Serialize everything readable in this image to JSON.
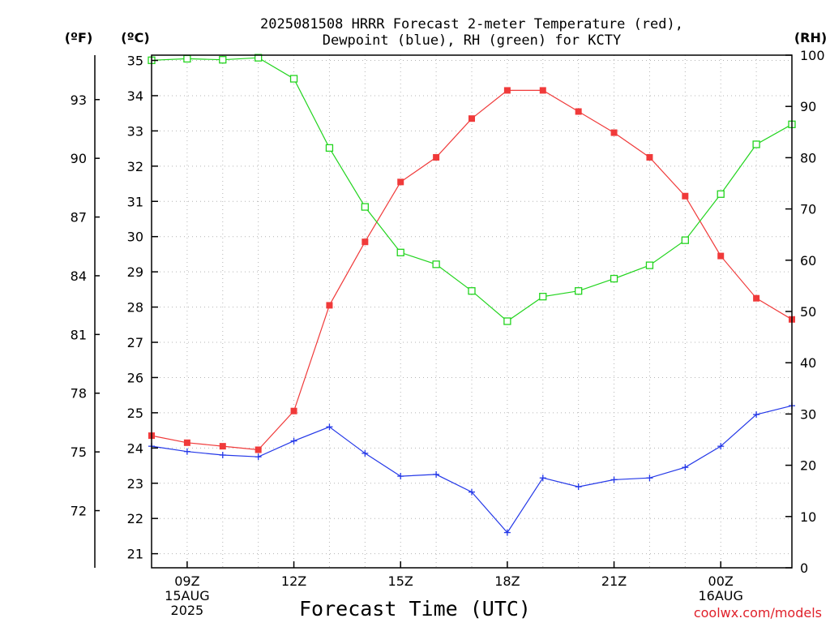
{
  "chart_data": {
    "type": "line",
    "title_lines": [
      "2025081508 HRRR Forecast 2-meter Temperature (red),",
      "Dewpoint (blue), RH (green) for KCTY"
    ],
    "xlabel": "Forecast Time (UTC)",
    "units": {
      "fahrenheit": "(ºF)",
      "celsius": "(ºC)",
      "rh": "(RH)"
    },
    "credit": "coolwx.com/models",
    "x_hours": [
      8,
      9,
      10,
      11,
      12,
      13,
      14,
      15,
      16,
      17,
      18,
      19,
      20,
      21,
      22,
      23,
      24,
      25,
      26
    ],
    "xlim": [
      8,
      26
    ],
    "x_ticks": [
      {
        "hour": 9,
        "lines": [
          "09Z",
          "15AUG",
          "2025"
        ]
      },
      {
        "hour": 12,
        "lines": [
          "12Z"
        ]
      },
      {
        "hour": 15,
        "lines": [
          "15Z"
        ]
      },
      {
        "hour": 18,
        "lines": [
          "18Z"
        ]
      },
      {
        "hour": 21,
        "lines": [
          "21Z"
        ]
      },
      {
        "hour": 24,
        "lines": [
          "00Z",
          "16AUG"
        ]
      }
    ],
    "celsius_axis": {
      "ylim": [
        20.6,
        35.15
      ],
      "ticks": [
        21,
        22,
        23,
        24,
        25,
        26,
        27,
        28,
        29,
        30,
        31,
        32,
        33,
        34,
        35
      ]
    },
    "fahrenheit_axis": {
      "ticks": [
        72,
        75,
        78,
        81,
        84,
        87,
        90,
        93
      ]
    },
    "rh_axis": {
      "ylim": [
        0,
        100
      ],
      "ticks": [
        0,
        10,
        20,
        30,
        40,
        50,
        60,
        70,
        80,
        90,
        100
      ]
    },
    "grid": true,
    "series": [
      {
        "name": "Temperature",
        "color": "#f03a3a",
        "marker": "filled-square",
        "axis": "celsius",
        "values": [
          24.35,
          24.15,
          24.05,
          23.95,
          25.05,
          28.05,
          29.85,
          31.55,
          32.25,
          33.35,
          34.15,
          34.15,
          33.55,
          32.95,
          32.25,
          31.15,
          29.45,
          28.25,
          27.65
        ]
      },
      {
        "name": "Dewpoint",
        "color": "#2438e8",
        "marker": "plus",
        "axis": "celsius",
        "values": [
          24.05,
          23.9,
          23.8,
          23.75,
          24.2,
          24.6,
          23.85,
          23.2,
          23.25,
          22.75,
          21.6,
          23.15,
          22.9,
          23.1,
          23.15,
          23.45,
          24.05,
          24.95,
          25.2
        ]
      },
      {
        "name": "RH",
        "color": "#22d41e",
        "marker": "open-square",
        "axis": "rh",
        "values": [
          99,
          99.3,
          99.1,
          99.5,
          95.4,
          81.9,
          70.4,
          61.5,
          59.2,
          54.0,
          48.1,
          52.9,
          54.0,
          56.4,
          59.0,
          63.9,
          72.9,
          82.6,
          86.5
        ]
      }
    ]
  }
}
